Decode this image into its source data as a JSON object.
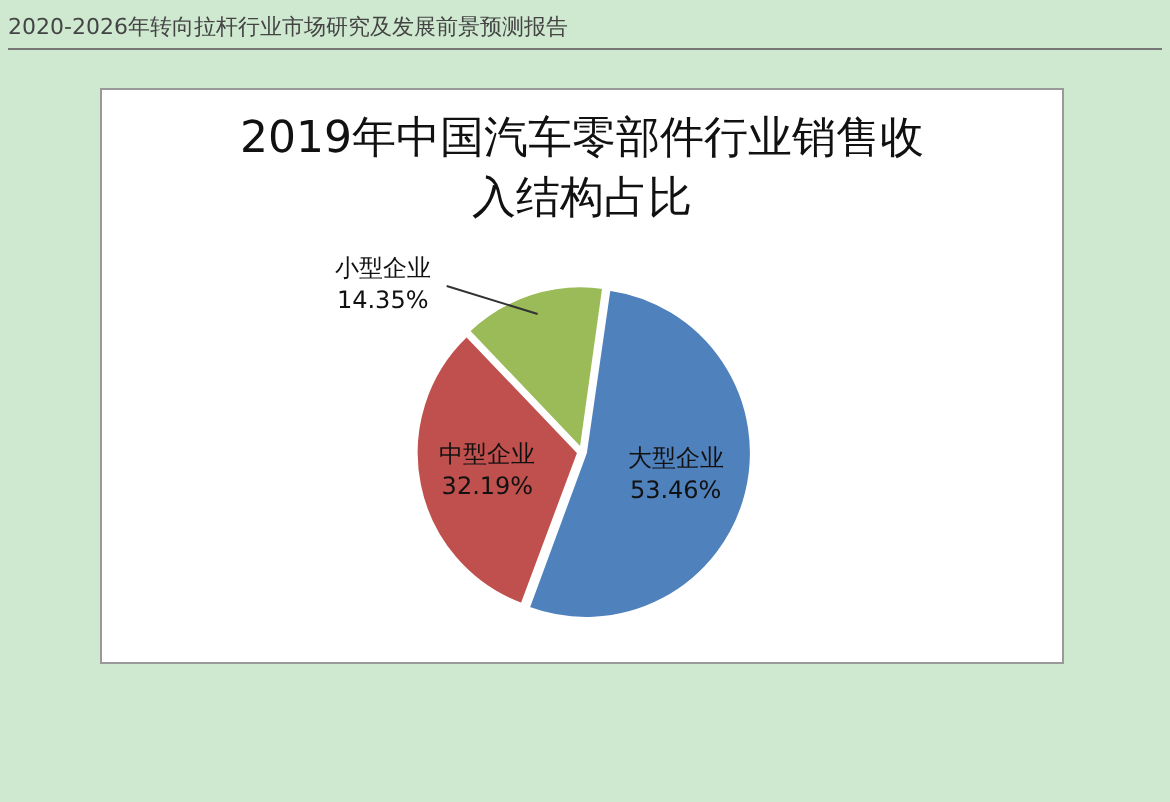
{
  "chart_data": {
    "type": "pie",
    "title": "2019年中国汽车零部件行业销售收入结构占比",
    "categories": [
      "大型企业",
      "中型企业",
      "小型企业"
    ],
    "values": [
      53.46,
      32.19,
      14.35
    ],
    "colors": [
      "#4f81bd",
      "#c0504d",
      "#9bbb59"
    ],
    "value_labels": [
      "53.46%",
      "32.19%",
      "14.35%"
    ],
    "legend": false,
    "annotations": [
      "2020-2026年转向拉杆行业市场研究及发展前景预测报告"
    ]
  }
}
